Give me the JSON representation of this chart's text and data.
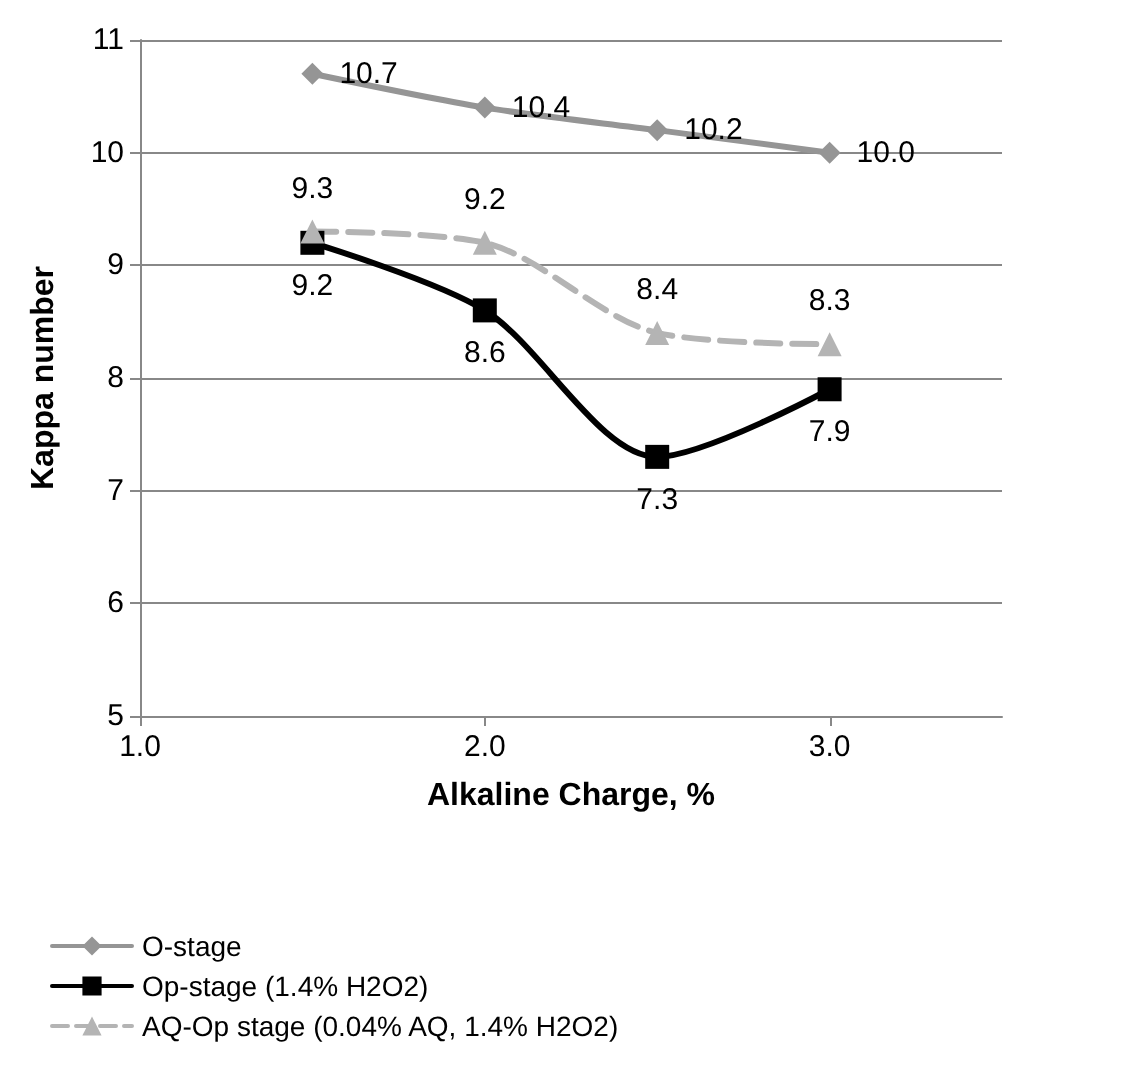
{
  "chart_data": {
    "type": "line",
    "xlabel": "Alkaline Charge, %",
    "ylabel": "Kappa number",
    "x": [
      1.5,
      2.0,
      2.5,
      3.0
    ],
    "series": [
      {
        "name": "O-stage",
        "color": "#959595",
        "marker": "diamond",
        "values": [
          10.7,
          10.4,
          10.2,
          10.0
        ],
        "value_labels": [
          "10.7",
          "10.4",
          "10.2",
          "10.0"
        ]
      },
      {
        "name": "Op-stage (1.4% H2O2)",
        "color": "#000000",
        "marker": "square",
        "values": [
          9.2,
          8.6,
          7.3,
          7.9
        ],
        "value_labels": [
          "9.2",
          "8.6",
          "7.3",
          "7.9"
        ]
      },
      {
        "name": "AQ-Op stage (0.04% AQ, 1.4% H2O2)",
        "color": "#b4b4b4",
        "marker": "triangle",
        "line_style": "dashed",
        "values": [
          9.3,
          9.2,
          8.4,
          8.3
        ],
        "value_labels": [
          "9.3",
          "9.2",
          "8.4",
          "8.3"
        ]
      }
    ],
    "xlim": [
      1.0,
      3.5
    ],
    "xticks": [
      {
        "value": 1.0,
        "label": "1.0"
      },
      {
        "value": 2.0,
        "label": "2.0"
      },
      {
        "value": 3.0,
        "label": "3.0"
      }
    ],
    "ylim": [
      5,
      11
    ],
    "yticks": [
      5,
      6,
      7,
      8,
      9,
      10,
      11
    ],
    "grid": "y",
    "legend": "bottom"
  }
}
